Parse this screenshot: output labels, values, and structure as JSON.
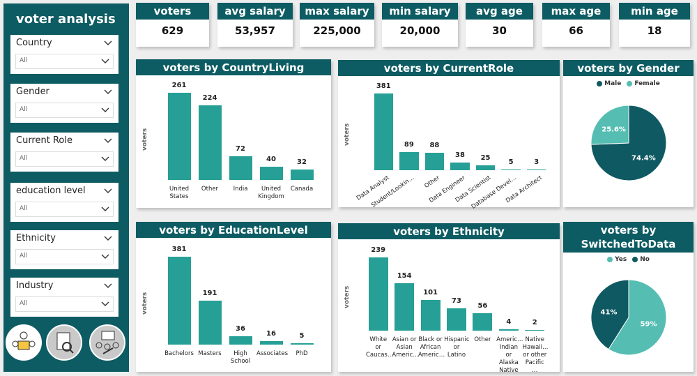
{
  "sidebar": {
    "title": "voter analysis",
    "filters": [
      {
        "label": "Country",
        "value": "All"
      },
      {
        "label": "Gender",
        "value": "All"
      },
      {
        "label": "Current Role",
        "value": "All"
      },
      {
        "label": "education level",
        "value": "All"
      },
      {
        "label": "Ethnicity",
        "value": "All"
      },
      {
        "label": "Industry",
        "value": "All"
      }
    ]
  },
  "kpis": [
    {
      "label": "voters",
      "value": "629"
    },
    {
      "label": "avg salary",
      "value": "53,957"
    },
    {
      "label": "max salary",
      "value": "225,000"
    },
    {
      "label": "min salary",
      "value": "20,000"
    },
    {
      "label": "avg age",
      "value": "30"
    },
    {
      "label": "max age",
      "value": "66"
    },
    {
      "label": "min age",
      "value": "18"
    }
  ],
  "chart_data": [
    {
      "type": "bar",
      "title": "voters by CountryLiving",
      "y_label": "voters",
      "color": "#26a096",
      "categories": [
        "United States",
        "Other",
        "India",
        "United Kingdom",
        "Canada"
      ],
      "values": [
        261,
        224,
        72,
        40,
        32
      ]
    },
    {
      "type": "bar",
      "title": "voters by CurrentRole",
      "y_label": "voters",
      "color": "#26a096",
      "categories": [
        "Data Analyst",
        "Student/Lookin…",
        "Other",
        "Data Engineer",
        "Data Scientist",
        "Database Devel…",
        "Data Architect"
      ],
      "values": [
        381,
        89,
        88,
        38,
        25,
        5,
        3
      ]
    },
    {
      "type": "pie",
      "title": "voters by Gender",
      "categories": [
        "Male",
        "Female"
      ],
      "values": [
        74.4,
        25.6
      ],
      "value_labels": [
        "74.4%",
        "25.6%"
      ],
      "colors": [
        "#0f5a62",
        "#55bdb2"
      ]
    },
    {
      "type": "bar",
      "title": "voters by EducationLevel",
      "y_label": "voters",
      "color": "#26a096",
      "categories": [
        "Bachelors",
        "Masters",
        "High School",
        "Associates",
        "PhD"
      ],
      "values": [
        381,
        191,
        36,
        16,
        5
      ]
    },
    {
      "type": "bar",
      "title": "voters by Ethnicity",
      "y_label": "voters",
      "color": "#26a096",
      "categories": [
        "White or Caucas…",
        "Asian or Asian Americ…",
        "Black or African Americ…",
        "Hispanic or Latino",
        "Other",
        "Americ… Indian or Alaska Native",
        "Native Hawaii… or other Pacific …"
      ],
      "values": [
        239,
        154,
        101,
        73,
        56,
        4,
        2
      ]
    },
    {
      "type": "pie",
      "title": "voters by SwitchedToData",
      "categories": [
        "Yes",
        "No"
      ],
      "values": [
        59,
        41
      ],
      "value_labels": [
        "59%",
        "41%"
      ],
      "colors": [
        "#55bdb2",
        "#0f5a62"
      ]
    }
  ]
}
